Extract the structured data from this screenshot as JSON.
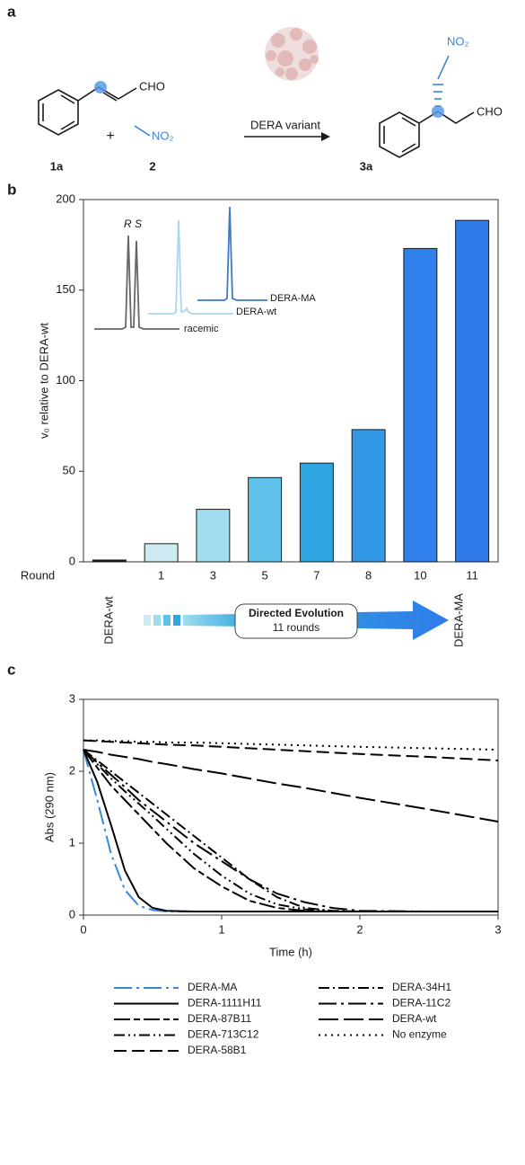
{
  "panel_labels": [
    "a",
    "b",
    "c"
  ],
  "scheme": {
    "reactant_group": "CHO",
    "reactant_label": "1a",
    "plus": "+",
    "reagent_group": "NO₂",
    "reagent_label": "2",
    "arrow_label": "DERA variant",
    "product_group_top": "NO₂",
    "product_group_right": "CHO",
    "product_label": "3a"
  },
  "inset_labels": {
    "peak_r": "R",
    "peak_s": "S",
    "racemic": "racemic",
    "wt": "DERA-wt",
    "ma": "DERA-MA"
  },
  "evolution": {
    "start": "DERA-wt",
    "box_title": "Directed Evolution",
    "box_subtitle": "11 rounds",
    "end": "DERA-MA"
  },
  "chart_data": [
    {
      "type": "bar",
      "y_label": "v₀ relative to DERA-wt",
      "x_label": "Round",
      "categories": [
        null,
        "1",
        "3",
        "5",
        "7",
        "8",
        "10",
        "11"
      ],
      "values": [
        1,
        10,
        29,
        46.5,
        54.5,
        73,
        173,
        188.5
      ],
      "colors": [
        "#1a1a1a",
        "#cdeaf3",
        "#9fdcee",
        "#5ec2ea",
        "#2fa6e0",
        "#3399e6",
        "#2f80ea",
        "#2f7be8"
      ],
      "edge_color": "#1a1a1a",
      "ylim": [
        0,
        200
      ],
      "yticks": [
        0,
        50,
        100,
        150,
        200
      ]
    },
    {
      "type": "line",
      "x_label": "Time (h)",
      "y_label": "Abs (290 nm)",
      "x": [
        0,
        0.1,
        0.2,
        0.3,
        0.4,
        0.5,
        0.6,
        0.8,
        1,
        1.2,
        1.4,
        1.6,
        1.8,
        2,
        2.5,
        3
      ],
      "xlim": [
        0,
        3
      ],
      "xticks": [
        0,
        1,
        2,
        3
      ],
      "ylim": [
        0,
        3
      ],
      "yticks": [
        0,
        1,
        2,
        3
      ],
      "series": [
        {
          "name": "DERA-MA",
          "color": "#3a86d8",
          "style": "longdashdot",
          "values": [
            2.3,
            1.6,
            0.85,
            0.35,
            0.13,
            0.07,
            0.05,
            0.05,
            0.05,
            0.05,
            0.05,
            0.05,
            0.05,
            0.05,
            0.05,
            0.05
          ]
        },
        {
          "name": "DERA-1111H11",
          "color": "#000000",
          "style": "solid",
          "values": [
            2.3,
            1.85,
            1.25,
            0.62,
            0.25,
            0.1,
            0.06,
            0.05,
            0.05,
            0.05,
            0.05,
            0.05,
            0.05,
            0.05,
            0.05,
            0.05
          ]
        },
        {
          "name": "DERA-87B11",
          "color": "#000000",
          "style": "longshort",
          "values": [
            2.3,
            2.05,
            1.8,
            1.6,
            1.4,
            1.2,
            1.0,
            0.65,
            0.4,
            0.2,
            0.1,
            0.06,
            0.05,
            0.05,
            0.05,
            0.05
          ]
        },
        {
          "name": "DERA-713C12",
          "color": "#000000",
          "style": "dashdotdot",
          "values": [
            2.3,
            2.1,
            1.9,
            1.72,
            1.55,
            1.38,
            1.2,
            0.85,
            0.55,
            0.3,
            0.15,
            0.08,
            0.06,
            0.05,
            0.05,
            0.05
          ]
        },
        {
          "name": "DERA-58B1",
          "color": "#000000",
          "style": "dash",
          "values": [
            2.43,
            2.42,
            2.41,
            2.4,
            2.39,
            2.38,
            2.37,
            2.36,
            2.34,
            2.32,
            2.3,
            2.28,
            2.26,
            2.24,
            2.2,
            2.15
          ]
        },
        {
          "name": "DERA-34H1",
          "color": "#000000",
          "style": "dashdot",
          "values": [
            2.3,
            2.15,
            2.0,
            1.85,
            1.7,
            1.55,
            1.4,
            1.1,
            0.8,
            0.5,
            0.25,
            0.1,
            0.06,
            0.05,
            0.05,
            0.05
          ]
        },
        {
          "name": "DERA-11C2",
          "color": "#000000",
          "style": "longdashdot",
          "values": [
            2.3,
            2.12,
            1.95,
            1.78,
            1.6,
            1.45,
            1.3,
            1.0,
            0.75,
            0.5,
            0.3,
            0.18,
            0.1,
            0.06,
            0.05,
            0.05
          ]
        },
        {
          "name": "DERA-wt",
          "color": "#000000",
          "style": "longdash",
          "values": [
            2.3,
            2.27,
            2.23,
            2.2,
            2.17,
            2.13,
            2.1,
            2.03,
            1.97,
            1.9,
            1.83,
            1.77,
            1.7,
            1.63,
            1.47,
            1.3
          ]
        },
        {
          "name": "No enzyme",
          "color": "#000000",
          "style": "dot",
          "values": [
            2.43,
            2.43,
            2.42,
            2.42,
            2.41,
            2.41,
            2.4,
            2.4,
            2.39,
            2.38,
            2.37,
            2.36,
            2.35,
            2.34,
            2.32,
            2.3
          ]
        }
      ]
    }
  ]
}
